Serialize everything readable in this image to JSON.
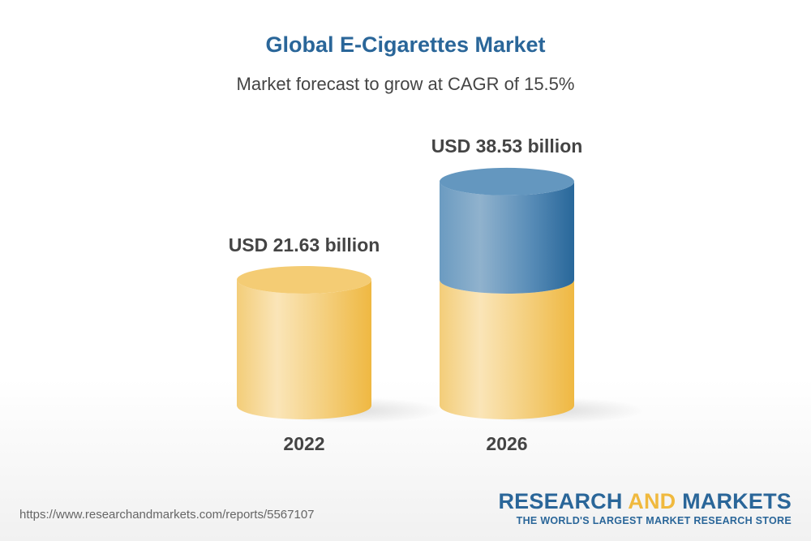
{
  "chart_data": {
    "type": "bar",
    "style": "3d-cylinder",
    "title": "Global E-Cigarettes Market",
    "subtitle": "Market forecast to grow at CAGR of 15.5%",
    "categories": [
      "2022",
      "2026"
    ],
    "values": [
      21.63,
      38.53
    ],
    "data_labels": [
      "USD 21.63 billion",
      "USD 38.53 billion"
    ],
    "unit": "USD billion",
    "grid": false,
    "colors": {
      "base": "#f2c15a",
      "growth": "#2a6699"
    }
  },
  "footer": {
    "url": "https://www.researchandmarkets.com/reports/5567107",
    "logo_part1": "RESEARCH ",
    "logo_part2": "AND",
    "logo_part3": " MARKETS",
    "tagline": "THE WORLD'S LARGEST MARKET RESEARCH STORE"
  }
}
